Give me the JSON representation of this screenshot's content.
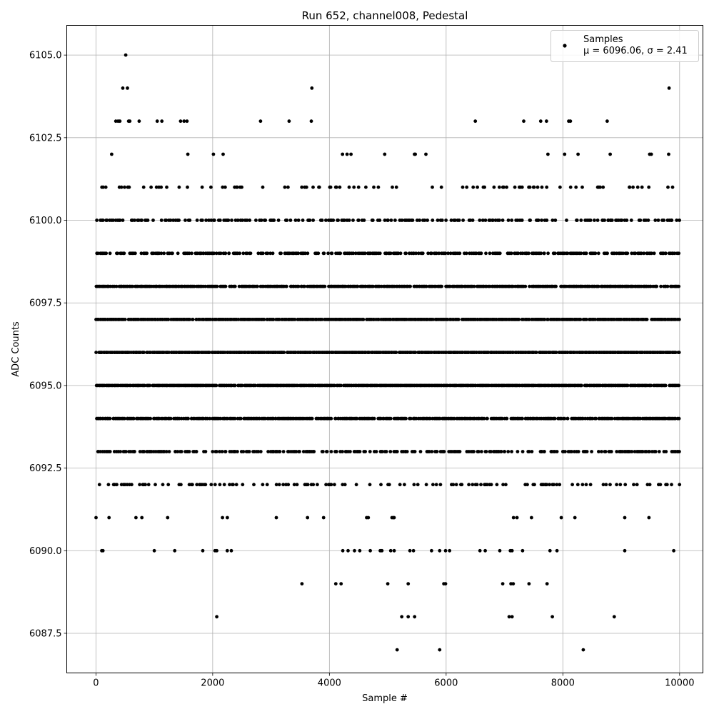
{
  "chart_data": {
    "type": "scatter",
    "title": "Run 652, channel008, Pedestal",
    "xlabel": "Sample #",
    "ylabel": "ADC Counts",
    "xlim": [
      -500,
      10400
    ],
    "ylim": [
      6086.3,
      6105.9
    ],
    "xticks": [
      0,
      2000,
      4000,
      6000,
      8000,
      10000
    ],
    "xtick_labels": [
      "0",
      "2000",
      "4000",
      "6000",
      "8000",
      "10000"
    ],
    "yticks": [
      6087.5,
      6090.0,
      6092.5,
      6095.0,
      6097.5,
      6100.0,
      6102.5,
      6105.0
    ],
    "ytick_labels": [
      "6087.5",
      "6090.0",
      "6092.5",
      "6095.0",
      "6097.5",
      "6100.0",
      "6102.5",
      "6105.0"
    ],
    "grid": true,
    "legend": {
      "placement": "top-right",
      "series_name": "Samples",
      "stats_prefix": "μ = 6096.06, ",
      "stats_suffix": "σ = 2.41"
    },
    "marker_color": "#000000",
    "series": [
      {
        "name": "Samples",
        "n_samples": 10000,
        "sample_range": [
          0,
          9999
        ],
        "mean": 6096.06,
        "sigma": 2.41,
        "dense_levels": [
          6091,
          6092,
          6093,
          6094,
          6095,
          6096,
          6097,
          6098,
          6099,
          6100,
          6101,
          6102
        ],
        "level_density": {
          "6091": 0.04,
          "6092": 0.25,
          "6093": 0.55,
          "6094": 0.85,
          "6095": 0.95,
          "6096": 0.95,
          "6097": 0.9,
          "6098": 0.85,
          "6099": 0.6,
          "6100": 0.4,
          "6101": 0.18,
          "6102": 0.04
        },
        "outliers": [
          {
            "x": 510,
            "y": 6105
          },
          {
            "x": 460,
            "y": 6104
          },
          {
            "x": 540,
            "y": 6104
          },
          {
            "x": 3700,
            "y": 6104
          },
          {
            "x": 9820,
            "y": 6104
          },
          {
            "x": 340,
            "y": 6103
          },
          {
            "x": 380,
            "y": 6103
          },
          {
            "x": 410,
            "y": 6103
          },
          {
            "x": 560,
            "y": 6103
          },
          {
            "x": 580,
            "y": 6103
          },
          {
            "x": 740,
            "y": 6103
          },
          {
            "x": 1050,
            "y": 6103
          },
          {
            "x": 1130,
            "y": 6103
          },
          {
            "x": 1450,
            "y": 6103
          },
          {
            "x": 1510,
            "y": 6103
          },
          {
            "x": 1560,
            "y": 6103
          },
          {
            "x": 2820,
            "y": 6103
          },
          {
            "x": 3310,
            "y": 6103
          },
          {
            "x": 3690,
            "y": 6103
          },
          {
            "x": 6500,
            "y": 6103
          },
          {
            "x": 7330,
            "y": 6103
          },
          {
            "x": 7620,
            "y": 6103
          },
          {
            "x": 7720,
            "y": 6103
          },
          {
            "x": 8100,
            "y": 6103
          },
          {
            "x": 8130,
            "y": 6103
          },
          {
            "x": 8760,
            "y": 6103
          },
          {
            "x": 120,
            "y": 6090
          },
          {
            "x": 100,
            "y": 6090
          },
          {
            "x": 1000,
            "y": 6090
          },
          {
            "x": 1350,
            "y": 6090
          },
          {
            "x": 1830,
            "y": 6090
          },
          {
            "x": 2040,
            "y": 6090
          },
          {
            "x": 2070,
            "y": 6090
          },
          {
            "x": 2250,
            "y": 6090
          },
          {
            "x": 2320,
            "y": 6090
          },
          {
            "x": 4230,
            "y": 6090
          },
          {
            "x": 4320,
            "y": 6090
          },
          {
            "x": 4430,
            "y": 6090
          },
          {
            "x": 4520,
            "y": 6090
          },
          {
            "x": 4700,
            "y": 6090
          },
          {
            "x": 4870,
            "y": 6090
          },
          {
            "x": 4900,
            "y": 6090
          },
          {
            "x": 5050,
            "y": 6090
          },
          {
            "x": 5110,
            "y": 6090
          },
          {
            "x": 5380,
            "y": 6090
          },
          {
            "x": 5440,
            "y": 6090
          },
          {
            "x": 5750,
            "y": 6090
          },
          {
            "x": 5890,
            "y": 6090
          },
          {
            "x": 5990,
            "y": 6090
          },
          {
            "x": 6060,
            "y": 6090
          },
          {
            "x": 6580,
            "y": 6090
          },
          {
            "x": 6670,
            "y": 6090
          },
          {
            "x": 6920,
            "y": 6090
          },
          {
            "x": 7100,
            "y": 6090
          },
          {
            "x": 7130,
            "y": 6090
          },
          {
            "x": 7310,
            "y": 6090
          },
          {
            "x": 7780,
            "y": 6090
          },
          {
            "x": 7900,
            "y": 6090
          },
          {
            "x": 9060,
            "y": 6090
          },
          {
            "x": 9900,
            "y": 6090
          },
          {
            "x": 3530,
            "y": 6089
          },
          {
            "x": 4110,
            "y": 6089
          },
          {
            "x": 4200,
            "y": 6089
          },
          {
            "x": 5000,
            "y": 6089
          },
          {
            "x": 5350,
            "y": 6089
          },
          {
            "x": 5960,
            "y": 6089
          },
          {
            "x": 5990,
            "y": 6089
          },
          {
            "x": 6970,
            "y": 6089
          },
          {
            "x": 7110,
            "y": 6089
          },
          {
            "x": 7150,
            "y": 6089
          },
          {
            "x": 7420,
            "y": 6089
          },
          {
            "x": 7730,
            "y": 6089
          },
          {
            "x": 2070,
            "y": 6088
          },
          {
            "x": 5240,
            "y": 6088
          },
          {
            "x": 5350,
            "y": 6088
          },
          {
            "x": 5460,
            "y": 6088
          },
          {
            "x": 7080,
            "y": 6088
          },
          {
            "x": 7130,
            "y": 6088
          },
          {
            "x": 7820,
            "y": 6088
          },
          {
            "x": 8880,
            "y": 6088
          },
          {
            "x": 5160,
            "y": 6087
          },
          {
            "x": 5890,
            "y": 6087
          },
          {
            "x": 8350,
            "y": 6087
          }
        ]
      }
    ]
  }
}
